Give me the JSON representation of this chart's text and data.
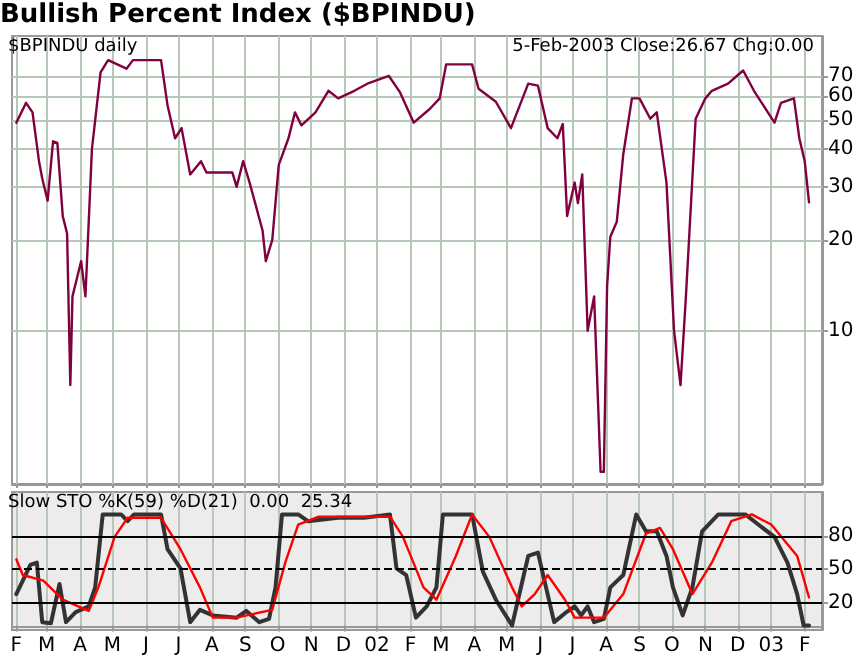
{
  "chart_data": [
    {
      "type": "line",
      "title": "Bullish Percent Index ($BPINDU)",
      "annotations": [
        "$BPINDU daily",
        "5-Feb-2003 Close:26.67 Chg:0.00"
      ],
      "log": "y",
      "ylim": [
        3.1,
        95
      ],
      "yticks": [
        10,
        20,
        30,
        40,
        50,
        60,
        70
      ],
      "xlim": [
        "2001-01-28",
        "2003-02-17"
      ],
      "xticks": [
        {
          "value": "2001-02-01",
          "label": null
        },
        {
          "value": "2001-03-01",
          "label": null
        },
        {
          "value": "2001-04-01",
          "label": null
        },
        {
          "value": "2001-05-01",
          "label": null
        },
        {
          "value": "2001-06-01",
          "label": null
        },
        {
          "value": "2001-07-01",
          "label": null
        },
        {
          "value": "2001-08-01",
          "label": null
        },
        {
          "value": "2001-09-01",
          "label": null
        },
        {
          "value": "2001-10-01",
          "label": null
        },
        {
          "value": "2001-11-01",
          "label": null
        },
        {
          "value": "2001-12-01",
          "label": null
        },
        {
          "value": "2002-01-01",
          "label": null
        },
        {
          "value": "2002-02-01",
          "label": null
        },
        {
          "value": "2002-03-01",
          "label": null
        },
        {
          "value": "2002-04-01",
          "label": null
        },
        {
          "value": "2002-05-01",
          "label": null
        },
        {
          "value": "2002-06-01",
          "label": null
        },
        {
          "value": "2002-07-01",
          "label": null
        },
        {
          "value": "2002-08-01",
          "label": null
        },
        {
          "value": "2002-09-01",
          "label": null
        },
        {
          "value": "2002-10-01",
          "label": null
        },
        {
          "value": "2002-11-01",
          "label": null
        },
        {
          "value": "2002-12-01",
          "label": null
        },
        {
          "value": "2003-01-01",
          "label": null
        },
        {
          "value": "2003-02-01",
          "label": null
        }
      ],
      "tick_labels": "y",
      "grid": true,
      "marker": "none",
      "line_style": "solid",
      "series": [
        {
          "color": "#800040",
          "x": [
            "2001-02-01",
            "2001-02-10",
            "2001-02-16",
            "2001-02-22",
            "2001-02-25",
            "2001-03-02",
            "2001-03-07",
            "2001-03-11",
            "2001-03-16",
            "2001-03-20",
            "2001-03-23",
            "2001-03-25",
            "2001-04-02",
            "2001-04-06",
            "2001-04-12",
            "2001-04-20",
            "2001-04-27",
            "2001-05-14",
            "2001-05-20",
            "2001-06-15",
            "2001-06-21",
            "2001-06-28",
            "2001-07-04",
            "2001-07-12",
            "2001-07-22",
            "2001-07-27",
            "2001-08-20",
            "2001-08-24",
            "2001-08-30",
            "2001-09-05",
            "2001-09-17",
            "2001-09-20",
            "2001-09-26",
            "2001-10-02",
            "2001-10-11",
            "2001-10-17",
            "2001-10-23",
            "2001-11-05",
            "2001-11-17",
            "2001-11-26",
            "2001-12-11",
            "2001-12-23",
            "2002-01-12",
            "2002-01-22",
            "2002-02-04",
            "2002-02-19",
            "2002-02-28",
            "2002-03-06",
            "2002-03-30",
            "2002-04-05",
            "2002-04-21",
            "2002-05-05",
            "2002-05-21",
            "2002-05-30",
            "2002-06-08",
            "2002-06-17",
            "2002-06-22",
            "2002-06-26",
            "2002-07-03",
            "2002-07-06",
            "2002-07-10",
            "2002-07-15",
            "2002-07-21",
            "2002-07-27",
            "2002-07-30",
            "2002-08-02",
            "2002-08-05",
            "2002-08-11",
            "2002-08-17",
            "2002-08-25",
            "2002-09-01",
            "2002-09-11",
            "2002-09-17",
            "2002-09-26",
            "2002-10-03",
            "2002-10-09",
            "2002-10-14",
            "2002-10-23",
            "2002-11-01",
            "2002-11-07",
            "2002-11-22",
            "2002-12-06",
            "2002-12-16",
            "2003-01-04",
            "2003-01-10",
            "2003-01-22",
            "2003-01-27",
            "2003-02-01",
            "2003-02-05"
          ],
          "values": [
            49,
            57,
            53,
            36.5,
            32,
            27,
            42.5,
            42,
            24,
            21,
            6.6,
            13,
            17,
            13,
            40,
            72,
            79,
            74,
            79,
            79,
            56,
            43.5,
            47,
            33,
            36.5,
            33.5,
            33.5,
            30,
            36.5,
            31,
            21.5,
            17,
            20,
            35.5,
            43.5,
            53,
            48,
            53,
            62.5,
            59,
            62.5,
            66,
            70,
            62,
            49,
            54.5,
            59,
            76.5,
            76.5,
            63.5,
            57.5,
            47,
            66,
            65,
            47,
            43.5,
            48.5,
            24,
            31,
            26.5,
            33,
            10,
            13,
            3.4,
            3.4,
            14,
            20.5,
            23,
            38.5,
            59,
            59,
            50.5,
            53,
            31,
            10,
            6.6,
            13,
            50.5,
            59,
            62.5,
            66,
            73,
            62.5,
            49,
            57,
            59,
            43.5,
            36.5,
            26.67
          ]
        }
      ]
    },
    {
      "type": "line",
      "annotations": [
        "Slow STO %K(59) %D(21)  0.00  25.34"
      ],
      "ylim": [
        -4,
        119
      ],
      "yticks": [
        20,
        50,
        80
      ],
      "xlim": [
        "2001-01-28",
        "2003-02-17"
      ],
      "xticks": [
        {
          "value": "2001-02-01",
          "label": "F"
        },
        {
          "value": "2001-03-01",
          "label": "M"
        },
        {
          "value": "2001-04-01",
          "label": "A"
        },
        {
          "value": "2001-05-01",
          "label": "M"
        },
        {
          "value": "2001-06-01",
          "label": "J"
        },
        {
          "value": "2001-07-01",
          "label": "J"
        },
        {
          "value": "2001-08-01",
          "label": "A"
        },
        {
          "value": "2001-09-01",
          "label": "S"
        },
        {
          "value": "2001-10-01",
          "label": "O"
        },
        {
          "value": "2001-11-01",
          "label": "N"
        },
        {
          "value": "2001-12-01",
          "label": "D"
        },
        {
          "value": "2002-01-01",
          "label": "02"
        },
        {
          "value": "2002-02-01",
          "label": "F"
        },
        {
          "value": "2002-03-01",
          "label": "M"
        },
        {
          "value": "2002-04-01",
          "label": "A"
        },
        {
          "value": "2002-05-01",
          "label": "M"
        },
        {
          "value": "2002-06-01",
          "label": "J"
        },
        {
          "value": "2002-07-01",
          "label": "J"
        },
        {
          "value": "2002-08-01",
          "label": "A"
        },
        {
          "value": "2002-09-01",
          "label": "S"
        },
        {
          "value": "2002-10-01",
          "label": "O"
        },
        {
          "value": "2002-11-01",
          "label": "N"
        },
        {
          "value": "2002-12-01",
          "label": "D"
        },
        {
          "value": "2003-01-01",
          "label": "03"
        },
        {
          "value": "2003-02-01",
          "label": "F"
        }
      ],
      "grid": "x",
      "marker": "none",
      "line_style": "solid",
      "ref_lines": [
        {
          "axis": "y",
          "value": 80,
          "color": "#000000",
          "line_style": "solid"
        },
        {
          "axis": "y",
          "value": 50,
          "color": "#000000",
          "line_style": "dashed"
        },
        {
          "axis": "y",
          "value": 20,
          "color": "#000000",
          "line_style": "solid"
        }
      ],
      "series": [
        {
          "color": "#333333",
          "x": [
            "2001-02-01",
            "2001-02-14",
            "2001-02-20",
            "2001-02-25",
            "2001-03-05",
            "2001-03-13",
            "2001-03-19",
            "2001-03-28",
            "2001-04-09",
            "2001-04-15",
            "2001-04-22",
            "2001-05-09",
            "2001-05-15",
            "2001-05-21",
            "2001-06-15",
            "2001-06-21",
            "2001-07-03",
            "2001-07-12",
            "2001-07-21",
            "2001-08-02",
            "2001-08-24",
            "2001-09-02",
            "2001-09-14",
            "2001-09-23",
            "2001-09-29",
            "2001-10-05",
            "2001-10-20",
            "2001-10-29",
            "2001-11-26",
            "2001-12-20",
            "2002-01-13",
            "2002-01-19",
            "2002-01-28",
            "2002-02-06",
            "2002-02-16",
            "2002-02-25",
            "2002-03-03",
            "2002-03-30",
            "2002-04-09",
            "2002-04-21",
            "2002-05-06",
            "2002-05-21",
            "2002-05-30",
            "2002-06-05",
            "2002-06-14",
            "2002-06-24",
            "2002-07-03",
            "2002-07-09",
            "2002-07-15",
            "2002-07-21",
            "2002-07-30",
            "2002-08-05",
            "2002-08-17",
            "2002-08-29",
            "2002-09-07",
            "2002-09-17",
            "2002-09-26",
            "2002-10-02",
            "2002-10-11",
            "2002-10-20",
            "2002-10-29",
            "2002-11-13",
            "2002-12-08",
            "2002-12-20",
            "2003-01-04",
            "2003-01-16",
            "2003-01-25",
            "2003-01-31",
            "2003-02-05"
          ],
          "values": [
            28,
            54,
            56,
            3,
            2,
            37,
            3,
            12,
            17,
            34,
            99,
            99,
            93,
            99,
            99,
            68,
            51,
            3,
            14,
            9,
            7,
            13,
            3,
            6,
            34,
            99,
            99,
            93,
            96,
            96,
            99,
            51,
            45,
            7,
            17,
            34,
            99,
            99,
            48,
            23,
            0,
            62,
            65,
            40,
            3,
            11,
            17,
            9,
            17,
            3,
            6,
            34,
            45,
            99,
            84,
            84,
            62,
            34,
            9,
            34,
            84,
            99,
            99,
            90,
            79,
            56,
            28,
            0,
            0
          ]
        },
        {
          "color": "#ff0000",
          "x": [
            "2001-02-01",
            "2001-02-07",
            "2001-02-26",
            "2001-03-16",
            "2001-04-09",
            "2001-04-18",
            "2001-05-03",
            "2001-05-15",
            "2001-06-15",
            "2001-07-03",
            "2001-07-21",
            "2001-08-02",
            "2001-08-24",
            "2001-09-26",
            "2001-10-08",
            "2001-10-20",
            "2001-11-08",
            "2002-01-13",
            "2002-01-25",
            "2002-02-13",
            "2002-02-25",
            "2002-03-15",
            "2002-03-30",
            "2002-04-15",
            "2002-05-06",
            "2002-05-15",
            "2002-05-27",
            "2002-06-08",
            "2002-06-24",
            "2002-07-03",
            "2002-07-30",
            "2002-08-17",
            "2002-09-07",
            "2002-09-20",
            "2002-10-02",
            "2002-10-20",
            "2002-11-07",
            "2002-11-25",
            "2002-12-14",
            "2003-01-01",
            "2003-01-25",
            "2003-02-05"
          ],
          "values": [
            59,
            45,
            40,
            23,
            13,
            34,
            79,
            96,
            96,
            68,
            34,
            7,
            7,
            14,
            56,
            90,
            97,
            97,
            79,
            34,
            23,
            62,
            99,
            79,
            34,
            17,
            28,
            45,
            23,
            7,
            7,
            28,
            82,
            87,
            68,
            28,
            56,
            93,
            99,
            90,
            62,
            25
          ]
        }
      ]
    }
  ]
}
